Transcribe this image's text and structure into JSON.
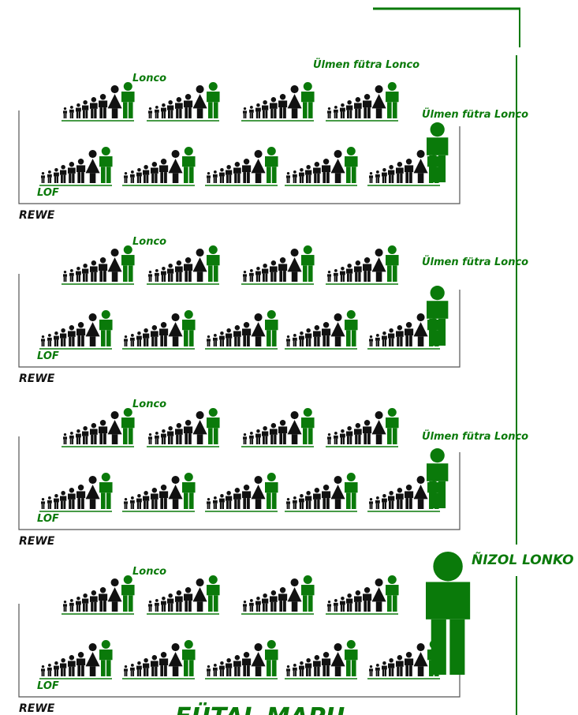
{
  "sections": [
    {
      "lonco": "Lonco",
      "ulmen_top": "Ülmen fütra Lonco",
      "ulmen": "Ülmen fütra Lonco",
      "lof": "LOF",
      "rewe": "REWE"
    },
    {
      "lonco": "Lonco",
      "ulmen": "Ülmen fütra Lonco",
      "lof": "LOF",
      "rewe": "REWE"
    },
    {
      "lonco": "Lonco",
      "ulmen": "Ülmen fütra Lonco",
      "lof": "LOF",
      "rewe": "REWE"
    },
    {
      "lonco": "Lonco",
      "lof": "LOF",
      "rewe": "REWE"
    }
  ],
  "nizol_lonko": "ÑIZOL LONKO",
  "futal_mapu": "FÜTAL MAPU"
}
